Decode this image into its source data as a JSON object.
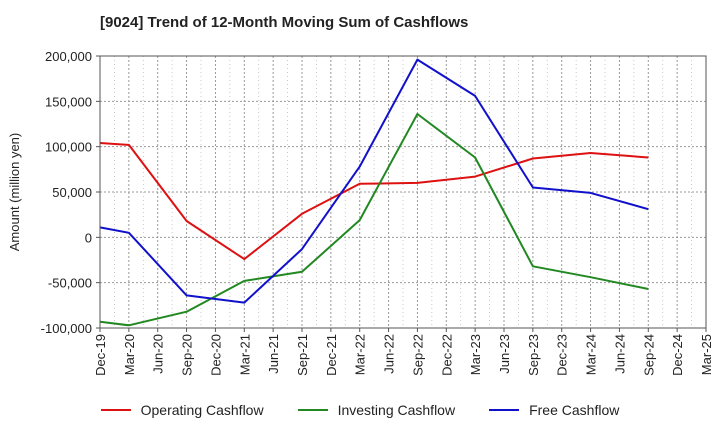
{
  "chart_data": {
    "type": "line",
    "title": "[9024]  Trend of 12-Month Moving Sum of Cashflows",
    "ylabel": "Amount (million yen)",
    "xlabel": "",
    "ylim": [
      -100000,
      200000
    ],
    "yticks": [
      200000,
      150000,
      100000,
      50000,
      0,
      -50000,
      -100000
    ],
    "ytick_labels": [
      "200,000",
      "150,000",
      "100,000",
      "50,000",
      "0",
      "-50,000",
      "-100,000"
    ],
    "x": [
      "Dec-19",
      "Mar-20",
      "Jun-20",
      "Sep-20",
      "Dec-20",
      "Mar-21",
      "Jun-21",
      "Sep-21",
      "Dec-21",
      "Mar-22",
      "Jun-22",
      "Sep-22",
      "Dec-22",
      "Mar-23",
      "Jun-23",
      "Sep-23",
      "Dec-23",
      "Mar-24",
      "Jun-24",
      "Sep-24",
      "Dec-24",
      "Mar-25"
    ],
    "grid": true,
    "legend_position": "bottom",
    "series": [
      {
        "name": "Operating Cashflow",
        "color": "#dd1111",
        "values": [
          104000,
          102000,
          null,
          18000,
          null,
          -24000,
          null,
          26000,
          null,
          59000,
          null,
          60000,
          null,
          67000,
          null,
          87000,
          null,
          93000,
          null,
          88000,
          null,
          null
        ]
      },
      {
        "name": "Investing Cashflow",
        "color": "#228822",
        "values": [
          -93000,
          -97000,
          null,
          -82000,
          null,
          -48000,
          null,
          -38000,
          null,
          19000,
          null,
          136000,
          null,
          88000,
          null,
          -32000,
          null,
          -44000,
          null,
          -57000,
          null,
          null
        ]
      },
      {
        "name": "Free Cashflow",
        "color": "#1111cc",
        "values": [
          11000,
          5000,
          null,
          -64000,
          null,
          -72000,
          null,
          -13000,
          null,
          78000,
          null,
          196000,
          null,
          156000,
          null,
          55000,
          null,
          49000,
          null,
          31000,
          null,
          null
        ]
      }
    ]
  }
}
